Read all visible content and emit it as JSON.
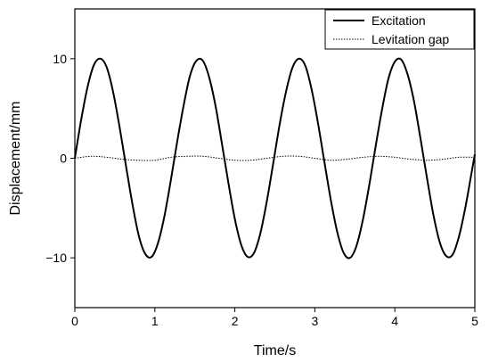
{
  "chart_data": {
    "type": "line",
    "title": "",
    "xlabel": "Time/s",
    "ylabel": "Displacement/mm",
    "xlim": [
      0,
      5
    ],
    "ylim": [
      -15,
      15
    ],
    "xticks": [
      0,
      1,
      2,
      3,
      4,
      5
    ],
    "xtick_labels": [
      "0",
      "1",
      "2",
      "3",
      "4",
      "5"
    ],
    "yticks": [
      -10,
      0,
      10
    ],
    "ytick_labels": [
      "−10",
      "0",
      "10"
    ],
    "grid": false,
    "legend_position": "top-right",
    "series": [
      {
        "name": "Excitation",
        "line_style": "solid",
        "color": "#000000",
        "x": [
          0,
          0.08,
          0.16,
          0.24,
          0.32,
          0.4,
          0.48,
          0.56,
          0.64,
          0.72,
          0.8,
          0.88,
          0.96,
          1.04,
          1.12,
          1.2,
          1.28,
          1.36,
          1.44,
          1.52,
          1.6,
          1.68,
          1.76,
          1.84,
          1.92,
          2.0,
          2.08,
          2.16,
          2.24,
          2.32,
          2.4,
          2.48,
          2.56,
          2.64,
          2.72,
          2.8,
          2.88,
          2.96,
          3.04,
          3.12,
          3.2,
          3.28,
          3.36,
          3.44,
          3.52,
          3.6,
          3.68,
          3.76,
          3.84,
          3.92,
          4.0,
          4.08,
          4.16,
          4.24,
          4.32,
          4.4,
          4.48,
          4.56,
          4.64,
          4.72,
          4.8,
          4.88,
          4.96,
          5.0
        ],
        "y": [
          0,
          3.9,
          7.2,
          9.4,
          10.0,
          9.1,
          6.6,
          3.1,
          -0.8,
          -4.6,
          -7.8,
          -9.6,
          -9.9,
          -8.5,
          -5.8,
          -2.2,
          1.7,
          5.3,
          8.3,
          9.8,
          9.8,
          8.1,
          5.2,
          1.4,
          -2.5,
          -6.1,
          -8.7,
          -9.9,
          -9.5,
          -7.5,
          -4.3,
          -0.5,
          3.4,
          6.7,
          9.1,
          10.0,
          9.3,
          6.9,
          3.5,
          -0.4,
          -4.2,
          -7.4,
          -9.5,
          -10.0,
          -8.8,
          -6.2,
          -2.7,
          1.2,
          4.9,
          8.0,
          9.7,
          9.9,
          8.4,
          5.7,
          2.0,
          -1.9,
          -5.6,
          -8.4,
          -9.8,
          -9.7,
          -7.9,
          -5.0,
          -1.4,
          0.4
        ]
      },
      {
        "name": "Levitation gap",
        "line_style": "dotted",
        "color": "#000000",
        "x": [
          0,
          0.2,
          0.4,
          0.6,
          0.8,
          1.0,
          1.2,
          1.4,
          1.6,
          1.8,
          2.0,
          2.2,
          2.4,
          2.6,
          2.8,
          3.0,
          3.2,
          3.4,
          3.6,
          3.8,
          4.0,
          4.2,
          4.4,
          4.6,
          4.8,
          5.0
        ],
        "y": [
          0,
          0.2,
          0.1,
          -0.1,
          -0.2,
          -0.2,
          0.1,
          0.2,
          0.2,
          0,
          -0.2,
          -0.2,
          0,
          0.2,
          0.2,
          0,
          -0.2,
          -0.1,
          0.1,
          0.2,
          0.1,
          -0.1,
          -0.2,
          -0.1,
          0.1,
          0.1
        ]
      }
    ]
  }
}
